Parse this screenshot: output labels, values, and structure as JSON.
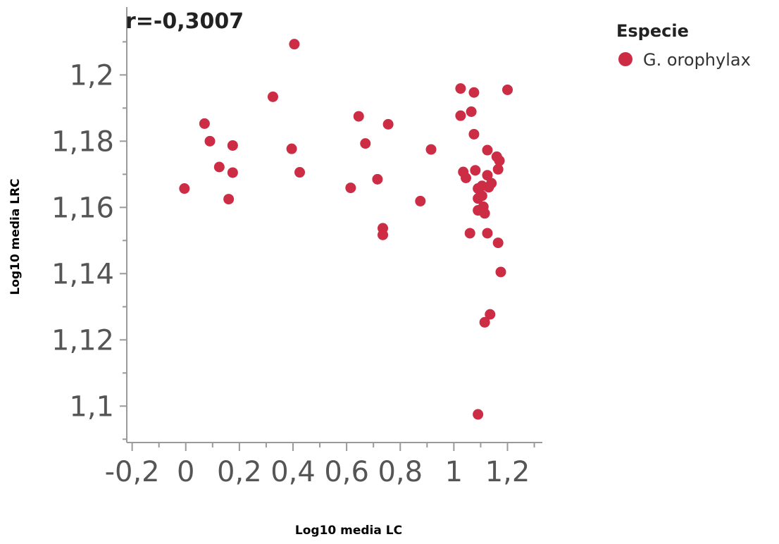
{
  "chart_data": {
    "type": "scatter",
    "title": "",
    "xlabel": "Log10 media LC",
    "ylabel": "Log10 media LRC",
    "annotation": "r=-0,3007",
    "legend": {
      "title": "Especie",
      "position": "top-right",
      "entries": [
        {
          "label": "G. orophylax",
          "color": "#cc2d45"
        }
      ]
    },
    "xlim": [
      -0.22,
      1.33
    ],
    "ylim": [
      1.089,
      1.2205
    ],
    "xticks": [
      -0.2,
      0,
      0.2,
      0.4,
      0.6,
      0.8,
      1,
      1.2
    ],
    "xtick_labels": [
      "-0,2",
      "0",
      "0,2",
      "0,4",
      "0,6",
      "0,8",
      "1",
      "1,2"
    ],
    "yticks": [
      1.1,
      1.12,
      1.14,
      1.16,
      1.18,
      1.2
    ],
    "ytick_labels": [
      "1,1",
      "1,12",
      "1,14",
      "1,16",
      "1,18",
      "1,2"
    ],
    "grid": false,
    "series": [
      {
        "name": "G. orophylax",
        "color": "#cc2d45",
        "points": [
          [
            -0.005,
            1.1657
          ],
          [
            0.07,
            1.1853
          ],
          [
            0.09,
            1.18
          ],
          [
            0.125,
            1.1722
          ],
          [
            0.16,
            1.1625
          ],
          [
            0.175,
            1.1787
          ],
          [
            0.175,
            1.1705
          ],
          [
            0.325,
            1.1934
          ],
          [
            0.395,
            1.1777
          ],
          [
            0.405,
            1.2093
          ],
          [
            0.425,
            1.1706
          ],
          [
            0.615,
            1.1659
          ],
          [
            0.645,
            1.1875
          ],
          [
            0.67,
            1.1793
          ],
          [
            0.715,
            1.1685
          ],
          [
            0.735,
            1.1537
          ],
          [
            0.735,
            1.1517
          ],
          [
            0.755,
            1.1851
          ],
          [
            0.875,
            1.1619
          ],
          [
            0.915,
            1.1775
          ],
          [
            1.025,
            1.1959
          ],
          [
            1.025,
            1.1877
          ],
          [
            1.035,
            1.1707
          ],
          [
            1.045,
            1.1689
          ],
          [
            1.06,
            1.1522
          ],
          [
            1.065,
            1.1889
          ],
          [
            1.075,
            1.1947
          ],
          [
            1.075,
            1.1821
          ],
          [
            1.08,
            1.1712
          ],
          [
            1.09,
            1.1657
          ],
          [
            1.09,
            1.1627
          ],
          [
            1.09,
            1.1591
          ],
          [
            1.09,
            1.0975
          ],
          [
            1.105,
            1.1665
          ],
          [
            1.105,
            1.1635
          ],
          [
            1.11,
            1.1602
          ],
          [
            1.115,
            1.1582
          ],
          [
            1.115,
            1.1253
          ],
          [
            1.125,
            1.1773
          ],
          [
            1.125,
            1.1697
          ],
          [
            1.125,
            1.1522
          ],
          [
            1.13,
            1.1661
          ],
          [
            1.135,
            1.1277
          ],
          [
            1.14,
            1.1673
          ],
          [
            1.16,
            1.1753
          ],
          [
            1.165,
            1.1715
          ],
          [
            1.165,
            1.1493
          ],
          [
            1.17,
            1.1741
          ],
          [
            1.175,
            1.1405
          ],
          [
            1.2,
            1.1955
          ]
        ]
      }
    ]
  }
}
